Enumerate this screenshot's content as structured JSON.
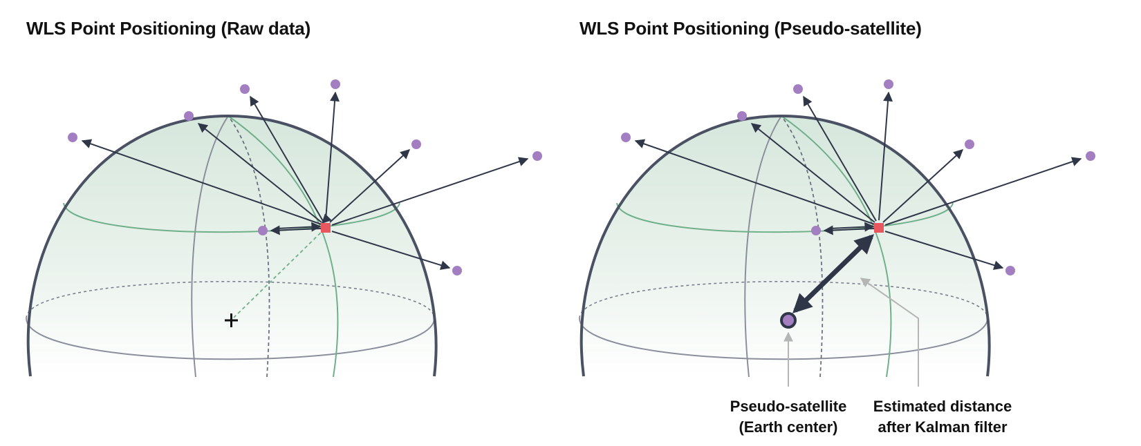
{
  "panels": [
    {
      "title": "WLS Point Positioning (Raw data)"
    },
    {
      "title": "WLS Point Positioning (Pseudo-satellite)",
      "annotations": {
        "pseudo_satellite": {
          "line1": "Pseudo-satellite",
          "line2": "(Earth center)"
        },
        "estimated_distance": {
          "line1": "Estimated distance",
          "line2": "after Kalman filter"
        }
      }
    }
  ],
  "colors": {
    "hemisphere_outline": "#4a5163",
    "meridian": "#8b8f9c",
    "green_line": "#6fb08b",
    "hemisphere_fill": "#dbe9e1",
    "satellite": "#a37fc2",
    "receiver": "#e8575f",
    "arrow": "#2f3648",
    "annotation_arrow": "#b5b5b5"
  },
  "icons": {
    "satellite": "purple-dot",
    "receiver": "red-square",
    "earth_center": "plus-sign",
    "pseudo_satellite": "ringed-purple-dot"
  }
}
